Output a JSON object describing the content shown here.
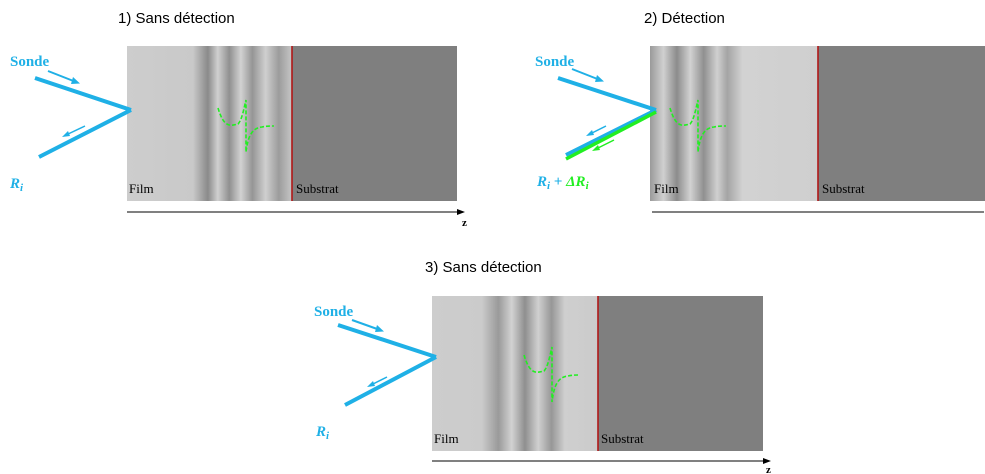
{
  "colors": {
    "beam": "#1fb0e6",
    "delta": "#22ee22",
    "film": "#cfcfcf",
    "substrat": "#7f7f7f",
    "interface": "#b01818"
  },
  "panels": [
    {
      "title": "1) Sans détection",
      "sonde": "Sonde",
      "reflect_label": "R",
      "reflect_sub": "i",
      "film": "Film",
      "substrat": "Substrat",
      "axis": "z",
      "detection": false
    },
    {
      "title": "2) Détection",
      "sonde": "Sonde",
      "reflect_label": "R",
      "reflect_sub": "i",
      "plus": " + ",
      "delta_label": "ΔR",
      "delta_sub": "i",
      "film": "Film",
      "substrat": "Substrat",
      "axis": "z",
      "detection": true
    },
    {
      "title": "3) Sans détection",
      "sonde": "Sonde",
      "reflect_label": "R",
      "reflect_sub": "i",
      "film": "Film",
      "substrat": "Substrat",
      "axis": "z",
      "detection": false
    }
  ]
}
